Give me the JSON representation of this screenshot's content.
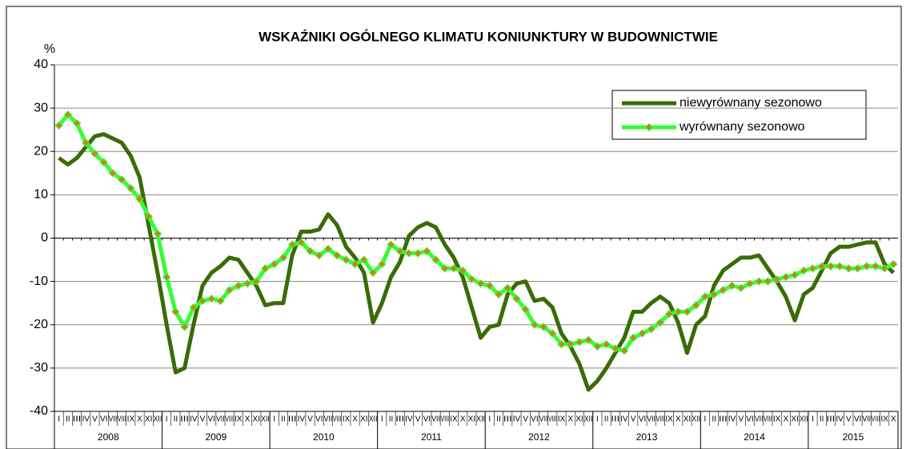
{
  "chart_data": {
    "type": "line",
    "title": "WSKAŹNIKI OGÓLNEGO KLIMATU KONIUNKTURY W BUDOWNICTWIE",
    "ylabel": "%",
    "ylim": [
      -40,
      40
    ],
    "yticks": [
      -40,
      -30,
      -20,
      -10,
      0,
      10,
      20,
      30,
      40
    ],
    "grid": true,
    "legend": "upper right",
    "categories": [
      "I",
      "II",
      "III",
      "IV",
      "V",
      "VI",
      "VII",
      "VIII",
      "IX",
      "X",
      "XI",
      "XII",
      "I",
      "II",
      "III",
      "IV",
      "V",
      "VI",
      "VII",
      "VIII",
      "IX",
      "X",
      "XI",
      "XII",
      "I",
      "II",
      "III",
      "IV",
      "V",
      "VI",
      "VII",
      "VIII",
      "IX",
      "X",
      "XI",
      "XII",
      "I",
      "II",
      "III",
      "IV",
      "V",
      "VI",
      "VII",
      "VIII",
      "IX",
      "X",
      "XI",
      "XII",
      "I",
      "II",
      "III",
      "IV",
      "V",
      "VI",
      "VII",
      "VIII",
      "IX",
      "X",
      "XI",
      "XII",
      "I",
      "II",
      "III",
      "IV",
      "V",
      "VI",
      "VII",
      "VIII",
      "IX",
      "X",
      "XI",
      "XII",
      "I",
      "II",
      "III",
      "IV",
      "V",
      "VI",
      "VII",
      "VIII",
      "IX",
      "X",
      "XI",
      "XII",
      "I",
      "II",
      "III",
      "IV",
      "V",
      "VI",
      "VII",
      "VIII",
      "IX",
      "X"
    ],
    "years": [
      "2008",
      "2009",
      "2010",
      "2011",
      "2012",
      "2013",
      "2014",
      "2015"
    ],
    "series": [
      {
        "name": "niewyrównany sezonowo",
        "color": "#3a6b06",
        "markers": false,
        "values": [
          18.5,
          17,
          18.5,
          21,
          23.5,
          24,
          23,
          22,
          19,
          14,
          3,
          -8,
          -20,
          -31,
          -30,
          -20,
          -11,
          -8,
          -6.5,
          -4.5,
          -5,
          -8,
          -11,
          -15.5,
          -15,
          -15,
          -4,
          1.5,
          1.5,
          2,
          5.5,
          3,
          -2,
          -4.5,
          -8,
          -19.5,
          -15,
          -9,
          -5.5,
          0.5,
          2.5,
          3.5,
          2.5,
          -1.5,
          -4.5,
          -9,
          -16,
          -23,
          -20.5,
          -20,
          -13,
          -10.5,
          -10,
          -14.5,
          -14,
          -16,
          -22,
          -25,
          -29,
          -35,
          -33,
          -30,
          -26.5,
          -23,
          -17,
          -17,
          -15,
          -13.5,
          -15,
          -19.5,
          -26.5,
          -20,
          -18,
          -11,
          -7.5,
          -6,
          -4.5,
          -4.5,
          -4,
          -7,
          -10,
          -13.5,
          -19,
          -13,
          -11.5,
          -7.5,
          -3.5,
          -2,
          -2,
          -1.5,
          -1,
          -1,
          -6,
          -8
        ]
      },
      {
        "name": "wyrównany sezonowo",
        "color": "#33ff33",
        "marker_color": "#c8841a",
        "markers": true,
        "values": [
          26,
          28.5,
          26.5,
          22,
          19.5,
          17.5,
          15,
          13.5,
          11.5,
          9,
          5,
          1,
          -9,
          -17,
          -20.5,
          -16,
          -14.5,
          -14,
          -14.5,
          -12,
          -11,
          -10.5,
          -10,
          -7,
          -6,
          -4.5,
          -1.5,
          -1,
          -3,
          -4,
          -2.5,
          -4,
          -5,
          -6,
          -5,
          -8,
          -6,
          -1.5,
          -3,
          -3.5,
          -3.5,
          -3,
          -5,
          -7,
          -7,
          -7.5,
          -9.5,
          -10.5,
          -11,
          -13,
          -11.5,
          -14,
          -16.5,
          -20,
          -20.5,
          -22,
          -24.5,
          -24.5,
          -24,
          -23.5,
          -25,
          -24.5,
          -25.5,
          -26,
          -23,
          -22,
          -21,
          -19.5,
          -17.5,
          -17,
          -17,
          -15.5,
          -13.5,
          -13,
          -12,
          -11,
          -11.5,
          -10.5,
          -10,
          -10,
          -9.5,
          -9,
          -8.5,
          -7.5,
          -7,
          -6.5,
          -6.5,
          -6.5,
          -7,
          -7,
          -6.5,
          -6.5,
          -7,
          -6
        ]
      }
    ]
  }
}
